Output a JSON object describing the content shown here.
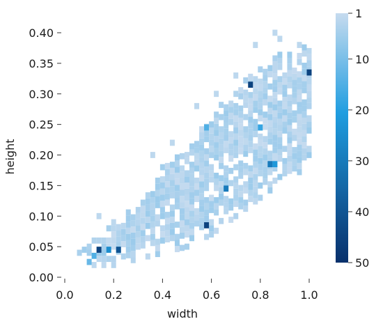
{
  "chart_data": {
    "type": "heatmap",
    "title": "",
    "xlabel": "width",
    "ylabel": "height",
    "xlim": [
      0.0,
      1.0
    ],
    "ylim": [
      0.0,
      0.4
    ],
    "x_ticks": [
      "0.0",
      "0.2",
      "0.4",
      "0.6",
      "0.8",
      "1.0"
    ],
    "y_ticks": [
      "0.00",
      "0.05",
      "0.10",
      "0.15",
      "0.20",
      "0.25",
      "0.30",
      "0.35",
      "0.40"
    ],
    "colorbar": {
      "ticks": [
        "1",
        "10",
        "20",
        "30",
        "40",
        "50"
      ],
      "tick_values": [
        1,
        10,
        20,
        30,
        40,
        50
      ],
      "min": 1,
      "max": 50,
      "color_low": "#c6dbef",
      "color_mid": "#1f9de0",
      "color_high": "#08306b"
    },
    "grid": false,
    "bin_size": {
      "x": 0.02,
      "y": 0.01
    },
    "bins": [
      {
        "x": 0.14,
        "y": 0.045,
        "count": 45
      },
      {
        "x": 0.18,
        "y": 0.045,
        "count": 25
      },
      {
        "x": 0.22,
        "y": 0.045,
        "count": 40
      },
      {
        "x": 0.12,
        "y": 0.035,
        "count": 15
      },
      {
        "x": 0.1,
        "y": 0.025,
        "count": 12
      },
      {
        "x": 0.58,
        "y": 0.085,
        "count": 45
      },
      {
        "x": 0.66,
        "y": 0.145,
        "count": 30
      },
      {
        "x": 0.58,
        "y": 0.245,
        "count": 15
      },
      {
        "x": 0.76,
        "y": 0.315,
        "count": 45
      },
      {
        "x": 0.8,
        "y": 0.245,
        "count": 18
      },
      {
        "x": 0.84,
        "y": 0.185,
        "count": 30
      },
      {
        "x": 0.86,
        "y": 0.185,
        "count": 22
      },
      {
        "x": 1.0,
        "y": 0.335,
        "count": 45
      }
    ],
    "background_density": {
      "description_free": true,
      "ridge": [
        {
          "x": 0.06,
          "ymin": 0.03,
          "ymax": 0.06
        },
        {
          "x": 0.1,
          "ymin": 0.02,
          "ymax": 0.06
        },
        {
          "x": 0.2,
          "ymin": 0.02,
          "ymax": 0.09
        },
        {
          "x": 0.3,
          "ymin": 0.03,
          "ymax": 0.13
        },
        {
          "x": 0.4,
          "ymin": 0.04,
          "ymax": 0.18
        },
        {
          "x": 0.5,
          "ymin": 0.05,
          "ymax": 0.22
        },
        {
          "x": 0.6,
          "ymin": 0.07,
          "ymax": 0.27
        },
        {
          "x": 0.7,
          "ymin": 0.1,
          "ymax": 0.31
        },
        {
          "x": 0.8,
          "ymin": 0.13,
          "ymax": 0.35
        },
        {
          "x": 0.9,
          "ymin": 0.16,
          "ymax": 0.37
        },
        {
          "x": 1.0,
          "ymin": 0.18,
          "ymax": 0.38
        }
      ]
    }
  }
}
